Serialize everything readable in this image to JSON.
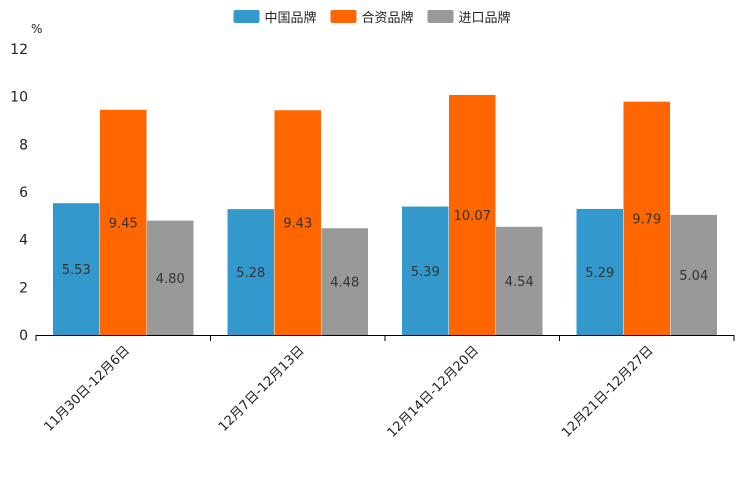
{
  "chart_data": {
    "type": "bar",
    "title": "",
    "xlabel": "",
    "ylabel": "%",
    "ylim": [
      0,
      12
    ],
    "yticks": [
      0,
      2,
      4,
      6,
      8,
      10,
      12
    ],
    "categories": [
      "11月30日-12月6日",
      "12月7日-12月13日",
      "12月14日-12月20日",
      "12月21日-12月27日"
    ],
    "legend_position": "top-center",
    "series": [
      {
        "name": "中国品牌",
        "color": "#3399cc",
        "values": [
          5.53,
          5.28,
          5.39,
          5.29
        ],
        "labels": [
          "5.53",
          "5.28",
          "5.39",
          "5.29"
        ]
      },
      {
        "name": "合资品牌",
        "color": "#ff6600",
        "values": [
          9.45,
          9.43,
          10.07,
          9.79
        ],
        "labels": [
          "9.45",
          "9.43",
          "10.07",
          "9.79"
        ]
      },
      {
        "name": "进口品牌",
        "color": "#999999",
        "values": [
          4.8,
          4.48,
          4.54,
          5.04
        ],
        "labels": [
          "4.80",
          "4.48",
          "4.54",
          "5.04"
        ]
      }
    ]
  }
}
